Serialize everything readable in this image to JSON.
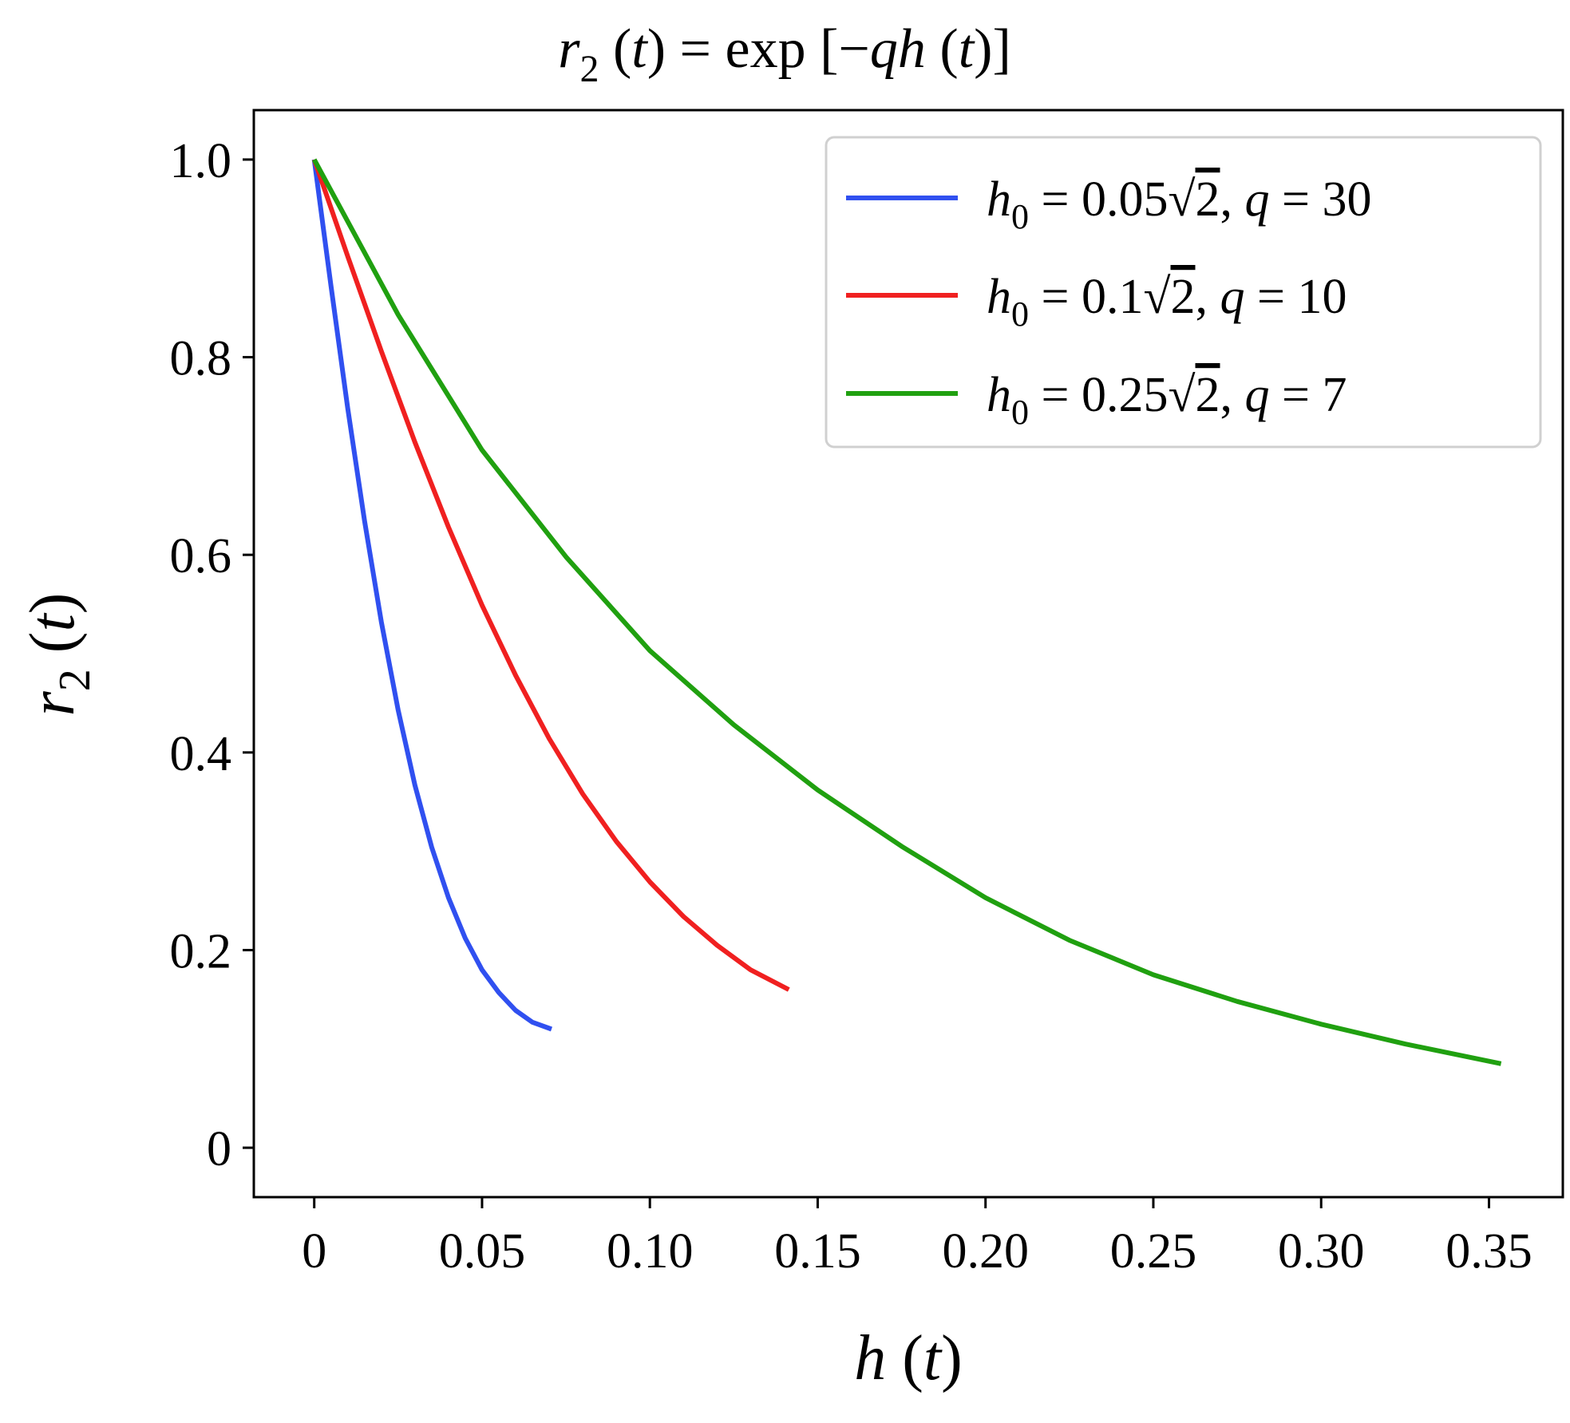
{
  "chart_data": {
    "type": "line",
    "title": {
      "pre": "r",
      "sub": "2",
      "mid": " (",
      "t": "t",
      "post1": ") = exp [−",
      "q": "q",
      "h": "h",
      "post2": " (",
      "t2": "t",
      "post3": ")]"
    },
    "xlabel": {
      "h": "h",
      "rest1": " (",
      "t": "t",
      "rest2": ")"
    },
    "ylabel": {
      "r": "r",
      "sub": "2",
      "rest1": " (",
      "t": "t",
      "rest2": ")"
    },
    "xlim": [
      -0.018,
      0.372
    ],
    "ylim": [
      -0.05,
      1.05
    ],
    "x_ticks": [
      0,
      0.05,
      0.1,
      0.15,
      0.2,
      0.25,
      0.3,
      0.35
    ],
    "x_tick_labels": [
      "0",
      "0.05",
      "0.10",
      "0.15",
      "0.20",
      "0.25",
      "0.30",
      "0.35"
    ],
    "y_ticks": [
      0,
      0.2,
      0.4,
      0.6,
      0.8,
      1.0
    ],
    "y_tick_labels": [
      "0",
      "0.2",
      "0.4",
      "0.6",
      "0.8",
      "1.0"
    ],
    "grid": false,
    "legend_position": "top-right",
    "series": [
      {
        "legend": {
          "h": "h",
          "sub": "0",
          "eq": " = 0.05",
          "rad": "2",
          "sep": ", ",
          "q": "q",
          "qeq": " = 30"
        },
        "color": "#3050f0",
        "x": [
          0,
          0.005,
          0.01,
          0.015,
          0.02,
          0.025,
          0.03,
          0.035,
          0.04,
          0.045,
          0.05,
          0.055,
          0.06,
          0.065,
          0.0707
        ],
        "y": [
          1.0,
          0.872,
          0.748,
          0.634,
          0.532,
          0.443,
          0.367,
          0.304,
          0.253,
          0.212,
          0.18,
          0.157,
          0.139,
          0.127,
          0.12
        ]
      },
      {
        "legend": {
          "h": "h",
          "sub": "0",
          "eq": " = 0.1",
          "rad": "2",
          "sep": ", ",
          "q": "q",
          "qeq": " = 10"
        },
        "color": "#f02020",
        "x": [
          0,
          0.01,
          0.02,
          0.03,
          0.04,
          0.05,
          0.06,
          0.07,
          0.08,
          0.09,
          0.1,
          0.11,
          0.12,
          0.13,
          0.1414
        ],
        "y": [
          1.0,
          0.902,
          0.806,
          0.714,
          0.628,
          0.549,
          0.478,
          0.414,
          0.358,
          0.31,
          0.269,
          0.234,
          0.205,
          0.18,
          0.16
        ]
      },
      {
        "legend": {
          "h": "h",
          "sub": "0",
          "eq": " = 0.25",
          "rad": "2",
          "sep": ", ",
          "q": "q",
          "qeq": " = 7"
        },
        "color": "#20a010",
        "x": [
          0,
          0.025,
          0.05,
          0.075,
          0.1,
          0.125,
          0.15,
          0.175,
          0.2,
          0.225,
          0.25,
          0.275,
          0.3,
          0.325,
          0.3536
        ],
        "y": [
          1.0,
          0.843,
          0.706,
          0.598,
          0.503,
          0.428,
          0.362,
          0.305,
          0.253,
          0.21,
          0.175,
          0.148,
          0.125,
          0.105,
          0.085
        ]
      }
    ],
    "legend_frame_color": "#d0d0d0"
  }
}
